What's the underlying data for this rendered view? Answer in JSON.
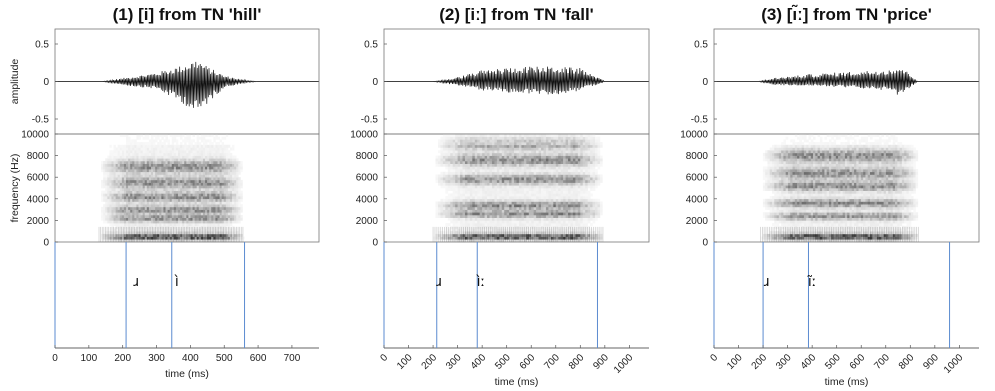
{
  "chart_data": [
    {
      "type": "waveform-spectrogram-annotation",
      "title": "(1) [i] from TN 'hill'",
      "xlabel": "time (ms)",
      "xlim": [
        0,
        780
      ],
      "xticks": [
        0,
        100,
        200,
        300,
        400,
        500,
        600,
        700
      ],
      "xtick_rotation": 0,
      "waveform": {
        "ylabel": "amplitude",
        "ylim": [
          -0.7,
          0.7
        ],
        "yticks": [
          0.5,
          0,
          -0.5
        ],
        "ytick_labels": [
          "0.5",
          "0",
          "-0.5"
        ],
        "envelope": [
          [
            0,
            0
          ],
          [
            140,
            0
          ],
          [
            220,
            0.06
          ],
          [
            300,
            0.12
          ],
          [
            380,
            0.22
          ],
          [
            420,
            0.3
          ],
          [
            450,
            0.2
          ],
          [
            500,
            0.08
          ],
          [
            560,
            0.02
          ],
          [
            600,
            0
          ],
          [
            780,
            0
          ]
        ],
        "envelope_neg": [
          [
            0,
            0
          ],
          [
            140,
            0
          ],
          [
            220,
            -0.06
          ],
          [
            300,
            -0.1
          ],
          [
            380,
            -0.3
          ],
          [
            420,
            -0.45
          ],
          [
            450,
            -0.3
          ],
          [
            500,
            -0.08
          ],
          [
            560,
            -0.02
          ],
          [
            600,
            0
          ],
          [
            780,
            0
          ]
        ]
      },
      "spectrogram": {
        "ylabel": "frequency (Hz)",
        "ylim": [
          0,
          10000
        ],
        "yticks": [
          0,
          2000,
          4000,
          6000,
          8000,
          10000
        ],
        "ytick_labels": [
          "0",
          "2000",
          "4000",
          "6000",
          "8000",
          "10000"
        ],
        "energy_ms": [
          130,
          560
        ],
        "formant_hz": [
          500,
          2200,
          3000,
          4200,
          5500,
          7000
        ]
      },
      "segments": [
        {
          "label": "ɹ",
          "at_ms": 240
        },
        {
          "label": "ì",
          "at_ms": 360
        }
      ],
      "boundaries_ms": [
        210,
        345,
        560
      ]
    },
    {
      "type": "waveform-spectrogram-annotation",
      "title": "(2) [iː] from TN 'fall'",
      "xlabel": "time (ms)",
      "xlim": [
        0,
        1080
      ],
      "xticks": [
        0,
        100,
        200,
        300,
        400,
        500,
        600,
        700,
        800,
        900,
        1000
      ],
      "xtick_rotation": 45,
      "waveform": {
        "ylim": [
          -0.7,
          0.7
        ],
        "yticks": [
          0.5,
          0,
          -0.5
        ],
        "ytick_labels": [
          "0.5",
          "0",
          "-0.5"
        ],
        "envelope": [
          [
            0,
            0
          ],
          [
            200,
            0
          ],
          [
            280,
            0.04
          ],
          [
            400,
            0.15
          ],
          [
            550,
            0.2
          ],
          [
            700,
            0.2
          ],
          [
            800,
            0.18
          ],
          [
            860,
            0.08
          ],
          [
            900,
            0
          ],
          [
            1080,
            0
          ]
        ],
        "envelope_neg": [
          [
            0,
            0
          ],
          [
            200,
            0
          ],
          [
            280,
            -0.04
          ],
          [
            400,
            -0.12
          ],
          [
            550,
            -0.16
          ],
          [
            700,
            -0.18
          ],
          [
            800,
            -0.12
          ],
          [
            860,
            -0.05
          ],
          [
            900,
            0
          ],
          [
            1080,
            0
          ]
        ]
      },
      "spectrogram": {
        "ylim": [
          0,
          10000
        ],
        "yticks": [
          0,
          2000,
          4000,
          6000,
          8000,
          10000
        ],
        "ytick_labels": [
          "0",
          "2000",
          "4000",
          "6000",
          "8000",
          "10000"
        ],
        "energy_ms": [
          200,
          900
        ],
        "formant_hz": [
          500,
          2600,
          3400,
          5800,
          7600,
          9200
        ]
      },
      "segments": [
        {
          "label": "ɹ",
          "at_ms": 225
        },
        {
          "label": "ìː",
          "at_ms": 395
        }
      ],
      "boundaries_ms": [
        215,
        380,
        870
      ]
    },
    {
      "type": "waveform-spectrogram-annotation",
      "title": "(3) [ı̃ː] from TN 'price'",
      "xlabel": "time (ms)",
      "xlim": [
        0,
        1080
      ],
      "xticks": [
        0,
        100,
        200,
        300,
        400,
        500,
        600,
        700,
        800,
        900,
        1000
      ],
      "xtick_rotation": 45,
      "waveform": {
        "ylim": [
          -0.7,
          0.7
        ],
        "yticks": [
          0.5,
          0,
          -0.5
        ],
        "ytick_labels": [
          "0.5",
          "0",
          "-0.5"
        ],
        "envelope": [
          [
            0,
            0
          ],
          [
            180,
            0
          ],
          [
            250,
            0.05
          ],
          [
            400,
            0.1
          ],
          [
            550,
            0.13
          ],
          [
            700,
            0.16
          ],
          [
            760,
            0.2
          ],
          [
            800,
            0.1
          ],
          [
            830,
            0
          ],
          [
            1080,
            0
          ]
        ],
        "envelope_neg": [
          [
            0,
            0
          ],
          [
            180,
            0
          ],
          [
            250,
            -0.05
          ],
          [
            400,
            -0.06
          ],
          [
            550,
            -0.08
          ],
          [
            700,
            -0.12
          ],
          [
            760,
            -0.2
          ],
          [
            800,
            -0.08
          ],
          [
            830,
            0
          ],
          [
            1080,
            0
          ]
        ]
      },
      "spectrogram": {
        "ylim": [
          0,
          10000
        ],
        "yticks": [
          0,
          2000,
          4000,
          6000,
          8000,
          10000
        ],
        "ytick_labels": [
          "0",
          "2000",
          "4000",
          "6000",
          "8000",
          "10000"
        ],
        "energy_ms": [
          190,
          840
        ],
        "formant_hz": [
          500,
          2400,
          3600,
          5200,
          6400,
          8000
        ]
      },
      "segments": [
        {
          "label": "ɹ",
          "at_ms": 215
        },
        {
          "label": "ı̃ː",
          "at_ms": 400
        }
      ],
      "boundaries_ms": [
        200,
        385,
        960
      ]
    }
  ]
}
